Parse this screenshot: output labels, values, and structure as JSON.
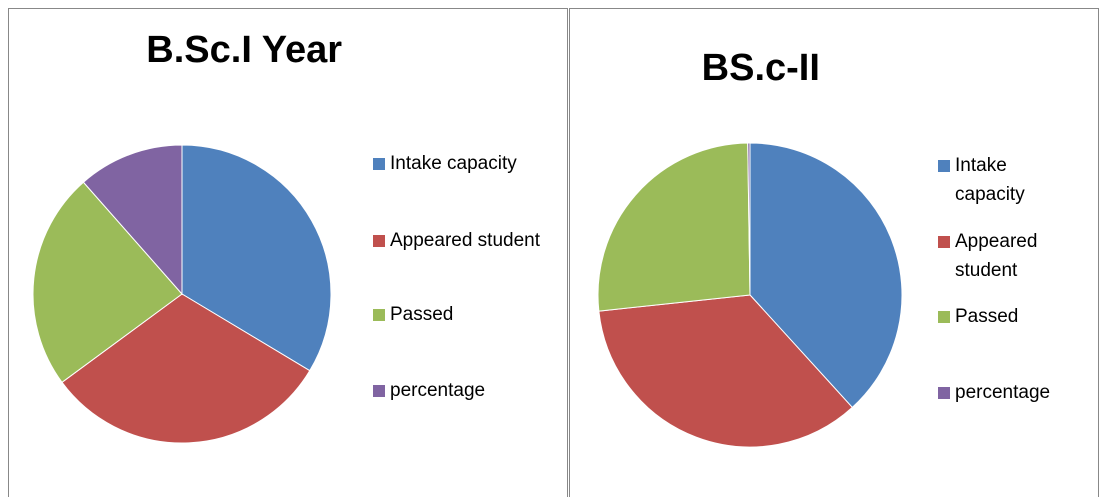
{
  "chart_data": [
    {
      "type": "pie",
      "title": "B.Sc.I Year",
      "categories": [
        "Intake capacity",
        "Appeared student",
        "Passed",
        "percentage"
      ],
      "values": [
        33.6,
        31.3,
        23.6,
        11.5
      ],
      "colors": [
        "#4f81bd",
        "#c0504d",
        "#9bbb59",
        "#8064a2"
      ]
    },
    {
      "type": "pie",
      "title": "BS.c-II",
      "categories": [
        "Intake capacity",
        "Appeared student",
        "Passed",
        "percentage"
      ],
      "values": [
        120,
        110,
        83,
        0.75
      ],
      "colors": [
        "#4f81bd",
        "#c0504d",
        "#9bbb59",
        "#8064a2"
      ]
    }
  ]
}
